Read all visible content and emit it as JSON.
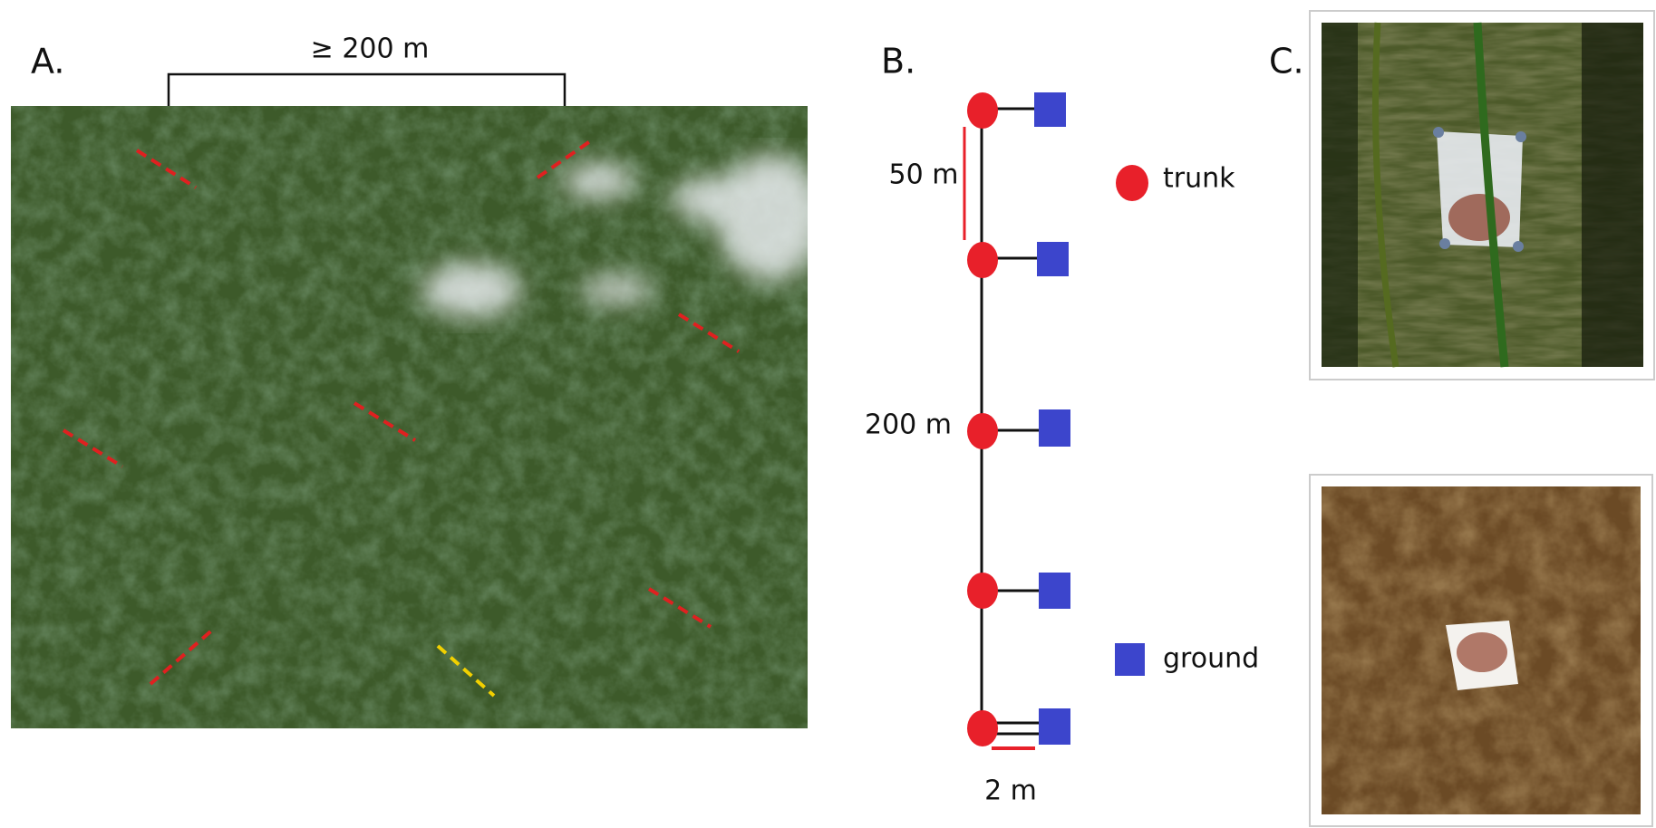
{
  "panel_a": {
    "label": "A.",
    "scale_label": "≥ 200 m"
  },
  "panel_b": {
    "label": "B.",
    "spacing_label": "50 m",
    "transect_label": "200 m",
    "offset_label": "2 m",
    "legend": [
      {
        "label": "trunk"
      },
      {
        "label": "ground"
      }
    ]
  },
  "panel_c": {
    "label": "C."
  }
}
